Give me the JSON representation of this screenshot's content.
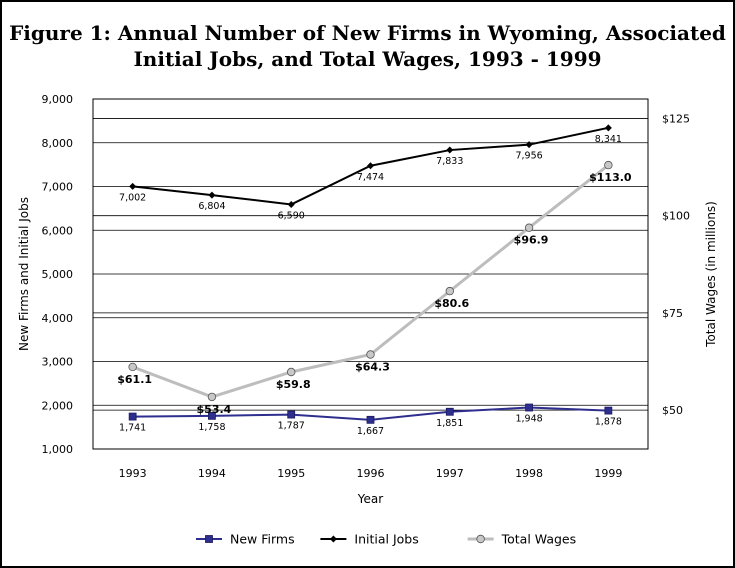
{
  "chart_data": {
    "type": "line",
    "title_line1": "Figure 1:  Annual Number of New Firms in Wyoming, Associated",
    "title_line2": "Initial Jobs, and Total Wages, 1993 - 1999",
    "xlabel": "Year",
    "ylabel_left": "New Firms and Initial Jobs",
    "ylabel_right": "Total Wages (in millions)",
    "categories": [
      "1993",
      "1994",
      "1995",
      "1996",
      "1997",
      "1998",
      "1999"
    ],
    "ylim_left": [
      1000,
      9000
    ],
    "ylim_right": [
      40,
      130
    ],
    "left_ticks": [
      "1,000",
      "2,000",
      "3,000",
      "4,000",
      "5,000",
      "6,000",
      "7,000",
      "8,000",
      "9,000"
    ],
    "right_ticks": [
      "$50",
      "$75",
      "$100",
      "$125"
    ],
    "grid": true,
    "legend_position": "bottom",
    "series": [
      {
        "name": "New Firms",
        "axis": "left",
        "color": "#2e2e8f",
        "marker": "square",
        "values": [
          1741,
          1758,
          1787,
          1667,
          1851,
          1948,
          1878
        ],
        "labels": [
          "1,741",
          "1,758",
          "1,787",
          "1,667",
          "1,851",
          "1,948",
          "1,878"
        ]
      },
      {
        "name": "Initial Jobs",
        "axis": "left",
        "color": "#000000",
        "marker": "diamond",
        "values": [
          7002,
          6804,
          6590,
          7474,
          7833,
          7956,
          8341
        ],
        "labels": [
          "7,002",
          "6,804",
          "6,590",
          "7,474",
          "7,833",
          "7,956",
          "8,341"
        ]
      },
      {
        "name": "Total Wages",
        "axis": "right",
        "color": "#bdbdbd",
        "marker": "circle",
        "values": [
          61.1,
          53.4,
          59.8,
          64.3,
          80.6,
          96.9,
          113.0
        ],
        "labels": [
          "$61.1",
          "$53.4",
          "$59.8",
          "$64.3",
          "$80.6",
          "$96.9",
          "$113.0"
        ]
      }
    ]
  }
}
